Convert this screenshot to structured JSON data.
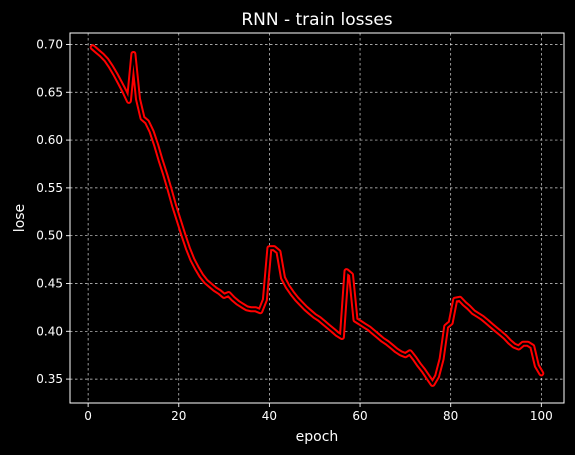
{
  "chart_data": {
    "type": "line",
    "title": "RNN - train losses",
    "xlabel": "epoch",
    "ylabel": "lose",
    "xlim": [
      -4,
      105
    ],
    "ylim": [
      0.325,
      0.712
    ],
    "xticks": [
      0,
      20,
      40,
      60,
      80,
      100
    ],
    "yticks": [
      0.35,
      0.4,
      0.45,
      0.5,
      0.55,
      0.6,
      0.65,
      0.7
    ],
    "xtick_labels": [
      "0",
      "20",
      "40",
      "60",
      "80",
      "100"
    ],
    "ytick_labels": [
      "0.35",
      "0.40",
      "0.45",
      "0.50",
      "0.55",
      "0.60",
      "0.65",
      "0.70"
    ],
    "grid": true,
    "background": "#000000",
    "foreground": "#ffffff",
    "series": [
      {
        "color": "#ff0000",
        "x": [
          1,
          2,
          3,
          4,
          5,
          6,
          7,
          8,
          9,
          10,
          11,
          12,
          13,
          14,
          15,
          16,
          17,
          18,
          19,
          20,
          21,
          22,
          23,
          24,
          25,
          26,
          27,
          28,
          29,
          30,
          31,
          32,
          33,
          34,
          35,
          36,
          37,
          38,
          39,
          40,
          41,
          42,
          43,
          44,
          45,
          46,
          47,
          48,
          49,
          50,
          51,
          52,
          53,
          54,
          55,
          56,
          57,
          58,
          59,
          60,
          61,
          62,
          63,
          64,
          65,
          66,
          67,
          68,
          69,
          70,
          71,
          72,
          73,
          74,
          75,
          76,
          77,
          78,
          79,
          80,
          81,
          82,
          83,
          84,
          85,
          86,
          87,
          88,
          89,
          90,
          91,
          92,
          93,
          94,
          95,
          96,
          97,
          98,
          99,
          100
        ],
        "y": [
          0.697,
          0.693,
          0.689,
          0.684,
          0.677,
          0.669,
          0.66,
          0.651,
          0.641,
          0.69,
          0.643,
          0.623,
          0.619,
          0.609,
          0.595,
          0.579,
          0.564,
          0.548,
          0.531,
          0.516,
          0.501,
          0.487,
          0.475,
          0.466,
          0.458,
          0.452,
          0.448,
          0.444,
          0.441,
          0.437,
          0.439,
          0.434,
          0.43,
          0.427,
          0.424,
          0.423,
          0.423,
          0.421,
          0.433,
          0.487,
          0.487,
          0.483,
          0.456,
          0.447,
          0.44,
          0.434,
          0.429,
          0.424,
          0.42,
          0.416,
          0.413,
          0.409,
          0.405,
          0.401,
          0.397,
          0.394,
          0.463,
          0.459,
          0.412,
          0.409,
          0.406,
          0.403,
          0.399,
          0.395,
          0.391,
          0.388,
          0.384,
          0.38,
          0.377,
          0.375,
          0.378,
          0.372,
          0.365,
          0.359,
          0.352,
          0.345,
          0.353,
          0.371,
          0.405,
          0.409,
          0.433,
          0.434,
          0.429,
          0.425,
          0.42,
          0.417,
          0.414,
          0.41,
          0.406,
          0.402,
          0.398,
          0.394,
          0.389,
          0.385,
          0.383,
          0.387,
          0.387,
          0.384,
          0.364,
          0.356
        ]
      }
    ]
  }
}
